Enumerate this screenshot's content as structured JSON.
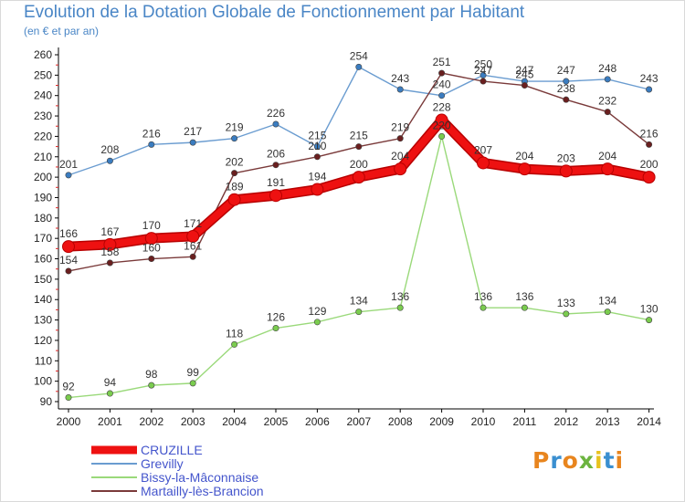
{
  "title": "Evolution de la Dotation Globale de Fonctionnement par Habitant",
  "subtitle": "(en € et par an)",
  "logo": {
    "text": "Proxiti",
    "colors": [
      "#e8851e",
      "#3a8fd0",
      "#e8851e",
      "#6cb43f",
      "#e8c21e",
      "#3a8fd0",
      "#e8851e"
    ]
  },
  "chart_data": {
    "type": "line",
    "title": "Evolution de la Dotation Globale de Fonctionnement par Habitant",
    "subtitle": "(en € et par an)",
    "xlabel": "",
    "ylabel": "",
    "categories": [
      "2000",
      "2001",
      "2002",
      "2003",
      "2004",
      "2005",
      "2006",
      "2007",
      "2008",
      "2009",
      "2010",
      "2011",
      "2012",
      "2013",
      "2014"
    ],
    "ylim": [
      90,
      260
    ],
    "yticks": [
      90,
      100,
      110,
      120,
      130,
      140,
      150,
      160,
      170,
      180,
      190,
      200,
      210,
      220,
      230,
      240,
      250,
      260
    ],
    "grid": false,
    "legend_position": "bottom-left",
    "series": [
      {
        "name": "Grevilly",
        "color": "#6a9cd0",
        "marker": "#3a7cc0",
        "highlight": false,
        "values": [
          201,
          208,
          216,
          217,
          219,
          226,
          215,
          254,
          243,
          240,
          250,
          247,
          247,
          248,
          243
        ]
      },
      {
        "name": "Bissy-la-Mâconnaise",
        "color": "#9ad97a",
        "marker": "#7acc4e",
        "highlight": false,
        "values": [
          92,
          94,
          98,
          99,
          118,
          126,
          129,
          134,
          136,
          220,
          136,
          136,
          133,
          134,
          130
        ]
      },
      {
        "name": "Martailly-lès-Brancion",
        "color": "#7a3a3a",
        "marker": "#6a1f1f",
        "highlight": false,
        "values": [
          154,
          158,
          160,
          161,
          202,
          206,
          210,
          215,
          219,
          251,
          247,
          245,
          238,
          232,
          216
        ]
      },
      {
        "name": "CRUZILLE",
        "color": "#ee1111",
        "marker": "#ee1111",
        "highlight": true,
        "values": [
          166,
          167,
          170,
          171,
          189,
          191,
          194,
          200,
          204,
          228,
          207,
          204,
          203,
          204,
          200
        ]
      }
    ],
    "legend_order": [
      "CRUZILLE",
      "Grevilly",
      "Bissy-la-Mâconnaise",
      "Martailly-lès-Brancion"
    ]
  }
}
